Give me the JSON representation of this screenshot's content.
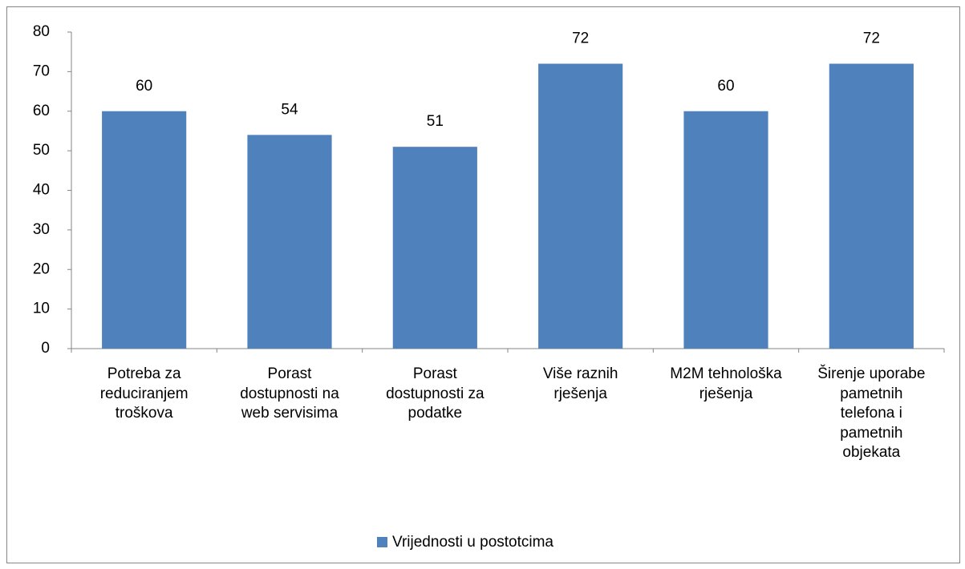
{
  "chart_data": {
    "type": "bar",
    "categories": [
      "Potreba za reduciranjem troškova",
      "Porast dostupnosti na web servisima",
      "Porast dostupnosti za podatke",
      "Više raznih rješenja",
      "M2M tehnološka rješenja",
      "Širenje uporabe pametnih telefona i pametnih objekata"
    ],
    "series": [
      {
        "name": "Vrijednosti u postotcima",
        "color": "#4f81bd",
        "values": [
          60,
          54,
          51,
          72,
          60,
          72
        ]
      }
    ],
    "ylim": [
      0,
      80
    ],
    "yticks": [
      0,
      10,
      20,
      30,
      40,
      50,
      60,
      70,
      80
    ],
    "grid": false,
    "legend": "bottom"
  }
}
